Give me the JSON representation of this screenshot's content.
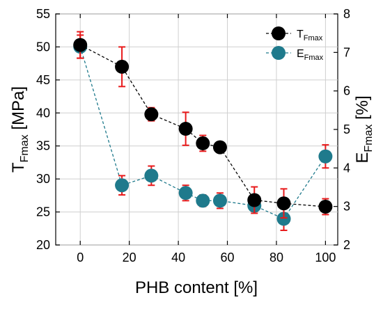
{
  "chart_data": {
    "type": "scatter",
    "xlabel": "PHB content [%]",
    "ylabel_left": {
      "base": "T",
      "sub": "Fmax",
      "unit": " [MPa]"
    },
    "ylabel_right": {
      "base": "E",
      "sub": "Fmax",
      "unit": " [%]"
    },
    "x_ticks": [
      0,
      20,
      40,
      60,
      80,
      100
    ],
    "xlim": [
      -10,
      105
    ],
    "y_left_ticks": [
      20,
      25,
      30,
      35,
      40,
      45,
      50,
      55
    ],
    "ylim_left": [
      20,
      55
    ],
    "y_right_ticks": [
      2,
      3,
      4,
      5,
      6,
      7,
      8
    ],
    "ylim_right": [
      2,
      8
    ],
    "grid": true,
    "legend_position": "top-right",
    "series": [
      {
        "name_base": "T",
        "name_sub": "Fmax",
        "axis": "left",
        "color": "#000000",
        "line_color": "#000000",
        "x": [
          0,
          17,
          29,
          43,
          50,
          57,
          71,
          83,
          100
        ],
        "y": [
          50.3,
          47.0,
          39.8,
          37.6,
          35.4,
          34.8,
          26.8,
          26.3,
          25.8
        ],
        "err": [
          2.0,
          3.0,
          1.0,
          2.5,
          1.2,
          0.8,
          2.0,
          2.2,
          1.2
        ]
      },
      {
        "name_base": "E",
        "name_sub": "Fmax",
        "axis": "right",
        "color": "#1f7a8c",
        "line_color": "#1f7a8c",
        "x": [
          0,
          17,
          29,
          43,
          50,
          57,
          71,
          83,
          100
        ],
        "y": [
          7.15,
          3.55,
          3.8,
          3.35,
          3.15,
          3.15,
          3.02,
          2.68,
          4.3
        ],
        "err": [
          0.3,
          0.25,
          0.25,
          0.2,
          0.15,
          0.2,
          0.15,
          0.3,
          0.3
        ]
      }
    ],
    "error_bar_color": "#e8191a"
  }
}
